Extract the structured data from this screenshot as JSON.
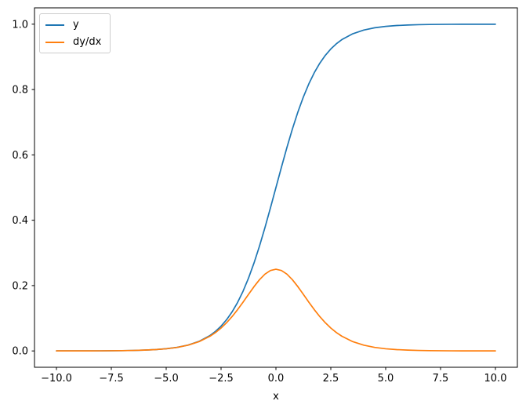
{
  "figure": {
    "background": "#ffffff",
    "frame_color": "#000000"
  },
  "chart_data": {
    "type": "line",
    "title": "",
    "xlabel": "x",
    "ylabel": "",
    "grid": false,
    "legend_position": "upper left",
    "xlim": [
      -11,
      11
    ],
    "ylim": [
      -0.05,
      1.05
    ],
    "x_ticks": [
      -10,
      -7.5,
      -5,
      -2.5,
      0,
      2.5,
      5,
      7.5,
      10
    ],
    "x_tick_labels": [
      "−10.0",
      "−7.5",
      "−5.0",
      "−2.5",
      "0.0",
      "2.5",
      "5.0",
      "7.5",
      "10.0"
    ],
    "y_ticks": [
      0,
      0.2,
      0.4,
      0.6,
      0.8,
      1
    ],
    "y_tick_labels": [
      "0.0",
      "0.2",
      "0.4",
      "0.6",
      "0.8",
      "1.0"
    ],
    "x": [
      -10,
      -9.5,
      -9,
      -8.5,
      -8,
      -7.5,
      -7,
      -6.5,
      -6,
      -5.5,
      -5,
      -4.5,
      -4,
      -3.5,
      -3,
      -2.75,
      -2.5,
      -2.25,
      -2,
      -1.75,
      -1.5,
      -1.25,
      -1,
      -0.75,
      -0.5,
      -0.25,
      0,
      0.25,
      0.5,
      0.75,
      1,
      1.25,
      1.5,
      1.75,
      2,
      2.25,
      2.5,
      2.75,
      3,
      3.5,
      4,
      4.5,
      5,
      5.5,
      6,
      6.5,
      7,
      7.5,
      8,
      8.5,
      9,
      9.5,
      10
    ],
    "series": [
      {
        "name": "y",
        "color": "#1f77b4",
        "values": [
          4.5e-05,
          7.5e-05,
          0.000123,
          0.000203,
          0.000335,
          0.000553,
          0.000911,
          0.001501,
          0.002473,
          0.00407,
          0.006693,
          0.010987,
          0.017986,
          0.029312,
          0.047426,
          0.060087,
          0.075858,
          0.09535,
          0.119203,
          0.148047,
          0.182426,
          0.2227,
          0.268941,
          0.320821,
          0.377541,
          0.437824,
          0.5,
          0.562177,
          0.622459,
          0.679179,
          0.731059,
          0.7773,
          0.817574,
          0.851953,
          0.880797,
          0.90465,
          0.924142,
          0.939913,
          0.952574,
          0.970688,
          0.982014,
          0.989013,
          0.993307,
          0.99593,
          0.997527,
          0.998499,
          0.999089,
          0.999447,
          0.999665,
          0.999797,
          0.999877,
          0.999925,
          0.999955
        ]
      },
      {
        "name": "dy/dx",
        "color": "#ff7f0e",
        "values": [
          4.5e-05,
          7.5e-05,
          0.000123,
          0.000203,
          0.000335,
          0.000552,
          0.00091,
          0.001499,
          0.002467,
          0.004054,
          0.006648,
          0.010866,
          0.017663,
          0.028453,
          0.045177,
          0.056476,
          0.070104,
          0.086258,
          0.104994,
          0.126129,
          0.149146,
          0.173105,
          0.196612,
          0.217895,
          0.235004,
          0.246134,
          0.25,
          0.246134,
          0.235004,
          0.217895,
          0.196612,
          0.173105,
          0.149146,
          0.126129,
          0.104994,
          0.086258,
          0.070104,
          0.056476,
          0.045177,
          0.028453,
          0.017663,
          0.010866,
          0.006648,
          0.004054,
          0.002467,
          0.001499,
          0.00091,
          0.000552,
          0.000335,
          0.000203,
          0.000123,
          7.5e-05,
          4.5e-05
        ]
      }
    ]
  }
}
